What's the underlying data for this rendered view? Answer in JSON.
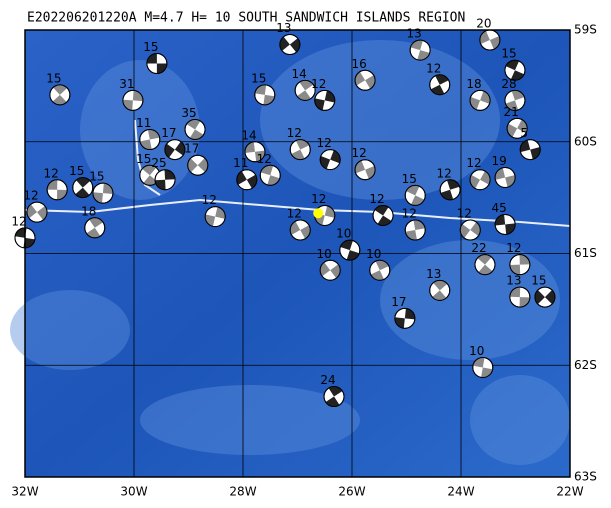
{
  "chart_data": {
    "type": "focal-map",
    "title": "E202206201220A M=4.7 H= 10 SOUTH SANDWICH ISLANDS REGION",
    "xlim": [
      -32,
      -22
    ],
    "ylim": [
      -59,
      -63
    ],
    "xticks": [
      {
        "value": -32,
        "label": "32W"
      },
      {
        "value": -30,
        "label": "30W"
      },
      {
        "value": -28,
        "label": "28W"
      },
      {
        "value": -26,
        "label": "26W"
      },
      {
        "value": -24,
        "label": "24W"
      },
      {
        "value": -22,
        "label": "22W"
      }
    ],
    "yticks": [
      {
        "value": -59,
        "label": "59S"
      },
      {
        "value": -60,
        "label": "60S"
      },
      {
        "value": -61,
        "label": "61S"
      },
      {
        "value": -62,
        "label": "62S"
      },
      {
        "value": -63,
        "label": "63S"
      }
    ],
    "grid": true,
    "epicenter_color": "#ffff00",
    "epicenter": {
      "lon": -26.62,
      "lat": -60.64
    },
    "events": [
      {
        "lon": -29.58,
        "lat": -59.3,
        "depth": 15
      },
      {
        "lon": -31.36,
        "lat": -59.58,
        "depth": 15
      },
      {
        "lon": -30.02,
        "lat": -59.63,
        "depth": 31
      },
      {
        "lon": -27.14,
        "lat": -59.13,
        "depth": 13
      },
      {
        "lon": -27.6,
        "lat": -59.58,
        "depth": 15
      },
      {
        "lon": -26.86,
        "lat": -59.54,
        "depth": 14
      },
      {
        "lon": -26.5,
        "lat": -59.63,
        "depth": 12
      },
      {
        "lon": -25.76,
        "lat": -59.45,
        "depth": 16
      },
      {
        "lon": -24.75,
        "lat": -59.18,
        "depth": 13
      },
      {
        "lon": -24.39,
        "lat": -59.49,
        "depth": 12
      },
      {
        "lon": -23.65,
        "lat": -59.63,
        "depth": 18
      },
      {
        "lon": -23.47,
        "lat": -59.09,
        "depth": 20
      },
      {
        "lon": -23.01,
        "lat": -59.36,
        "depth": 15
      },
      {
        "lon": -23.01,
        "lat": -59.63,
        "depth": 28
      },
      {
        "lon": -22.97,
        "lat": -59.88,
        "depth": 21
      },
      {
        "lon": -22.73,
        "lat": -60.07,
        "depth": 5
      },
      {
        "lon": -28.88,
        "lat": -59.89,
        "depth": 35
      },
      {
        "lon": -29.71,
        "lat": -59.98,
        "depth": 11
      },
      {
        "lon": -29.25,
        "lat": -60.07,
        "depth": 17
      },
      {
        "lon": -27.78,
        "lat": -60.09,
        "depth": 14
      },
      {
        "lon": -29.71,
        "lat": -60.3,
        "depth": 15
      },
      {
        "lon": -29.43,
        "lat": -60.34,
        "depth": 25
      },
      {
        "lon": -28.83,
        "lat": -60.21,
        "depth": 17
      },
      {
        "lon": -31.41,
        "lat": -60.43,
        "depth": 12
      },
      {
        "lon": -30.94,
        "lat": -60.41,
        "depth": 15
      },
      {
        "lon": -30.57,
        "lat": -60.46,
        "depth": 15
      },
      {
        "lon": -31.78,
        "lat": -60.63,
        "depth": 12
      },
      {
        "lon": -32.0,
        "lat": -60.86,
        "depth": 12
      },
      {
        "lon": -30.72,
        "lat": -60.77,
        "depth": 18
      },
      {
        "lon": -28.51,
        "lat": -60.67,
        "depth": 12
      },
      {
        "lon": -27.93,
        "lat": -60.34,
        "depth": 11
      },
      {
        "lon": -27.5,
        "lat": -60.3,
        "depth": 12
      },
      {
        "lon": -26.95,
        "lat": -60.07,
        "depth": 12
      },
      {
        "lon": -26.4,
        "lat": -60.16,
        "depth": 12
      },
      {
        "lon": -25.76,
        "lat": -60.25,
        "depth": 12
      },
      {
        "lon": -24.84,
        "lat": -60.48,
        "depth": 15
      },
      {
        "lon": -24.2,
        "lat": -60.43,
        "depth": 12
      },
      {
        "lon": -23.65,
        "lat": -60.34,
        "depth": 12
      },
      {
        "lon": -23.19,
        "lat": -60.32,
        "depth": 19
      },
      {
        "lon": -25.43,
        "lat": -60.66,
        "depth": 12
      },
      {
        "lon": -24.84,
        "lat": -60.79,
        "depth": 12
      },
      {
        "lon": -23.83,
        "lat": -60.79,
        "depth": 12
      },
      {
        "lon": -23.19,
        "lat": -60.74,
        "depth": 45
      },
      {
        "lon": -23.56,
        "lat": -61.1,
        "depth": 22
      },
      {
        "lon": -22.92,
        "lat": -61.1,
        "depth": 12
      },
      {
        "lon": -22.46,
        "lat": -61.39,
        "depth": 15
      },
      {
        "lon": -22.92,
        "lat": -61.39,
        "depth": 13
      },
      {
        "lon": -24.39,
        "lat": -61.33,
        "depth": 13
      },
      {
        "lon": -25.03,
        "lat": -61.58,
        "depth": 17
      },
      {
        "lon": -26.4,
        "lat": -61.15,
        "depth": 10
      },
      {
        "lon": -23.6,
        "lat": -62.02,
        "depth": 10
      },
      {
        "lon": -26.33,
        "lat": -62.28,
        "depth": 24
      },
      {
        "lon": -26.5,
        "lat": -60.66,
        "depth": 12
      },
      {
        "lon": -26.95,
        "lat": -60.79,
        "depth": 12
      },
      {
        "lon": -26.04,
        "lat": -60.97,
        "depth": 10
      },
      {
        "lon": -25.49,
        "lat": -61.15,
        "depth": 10
      }
    ]
  }
}
